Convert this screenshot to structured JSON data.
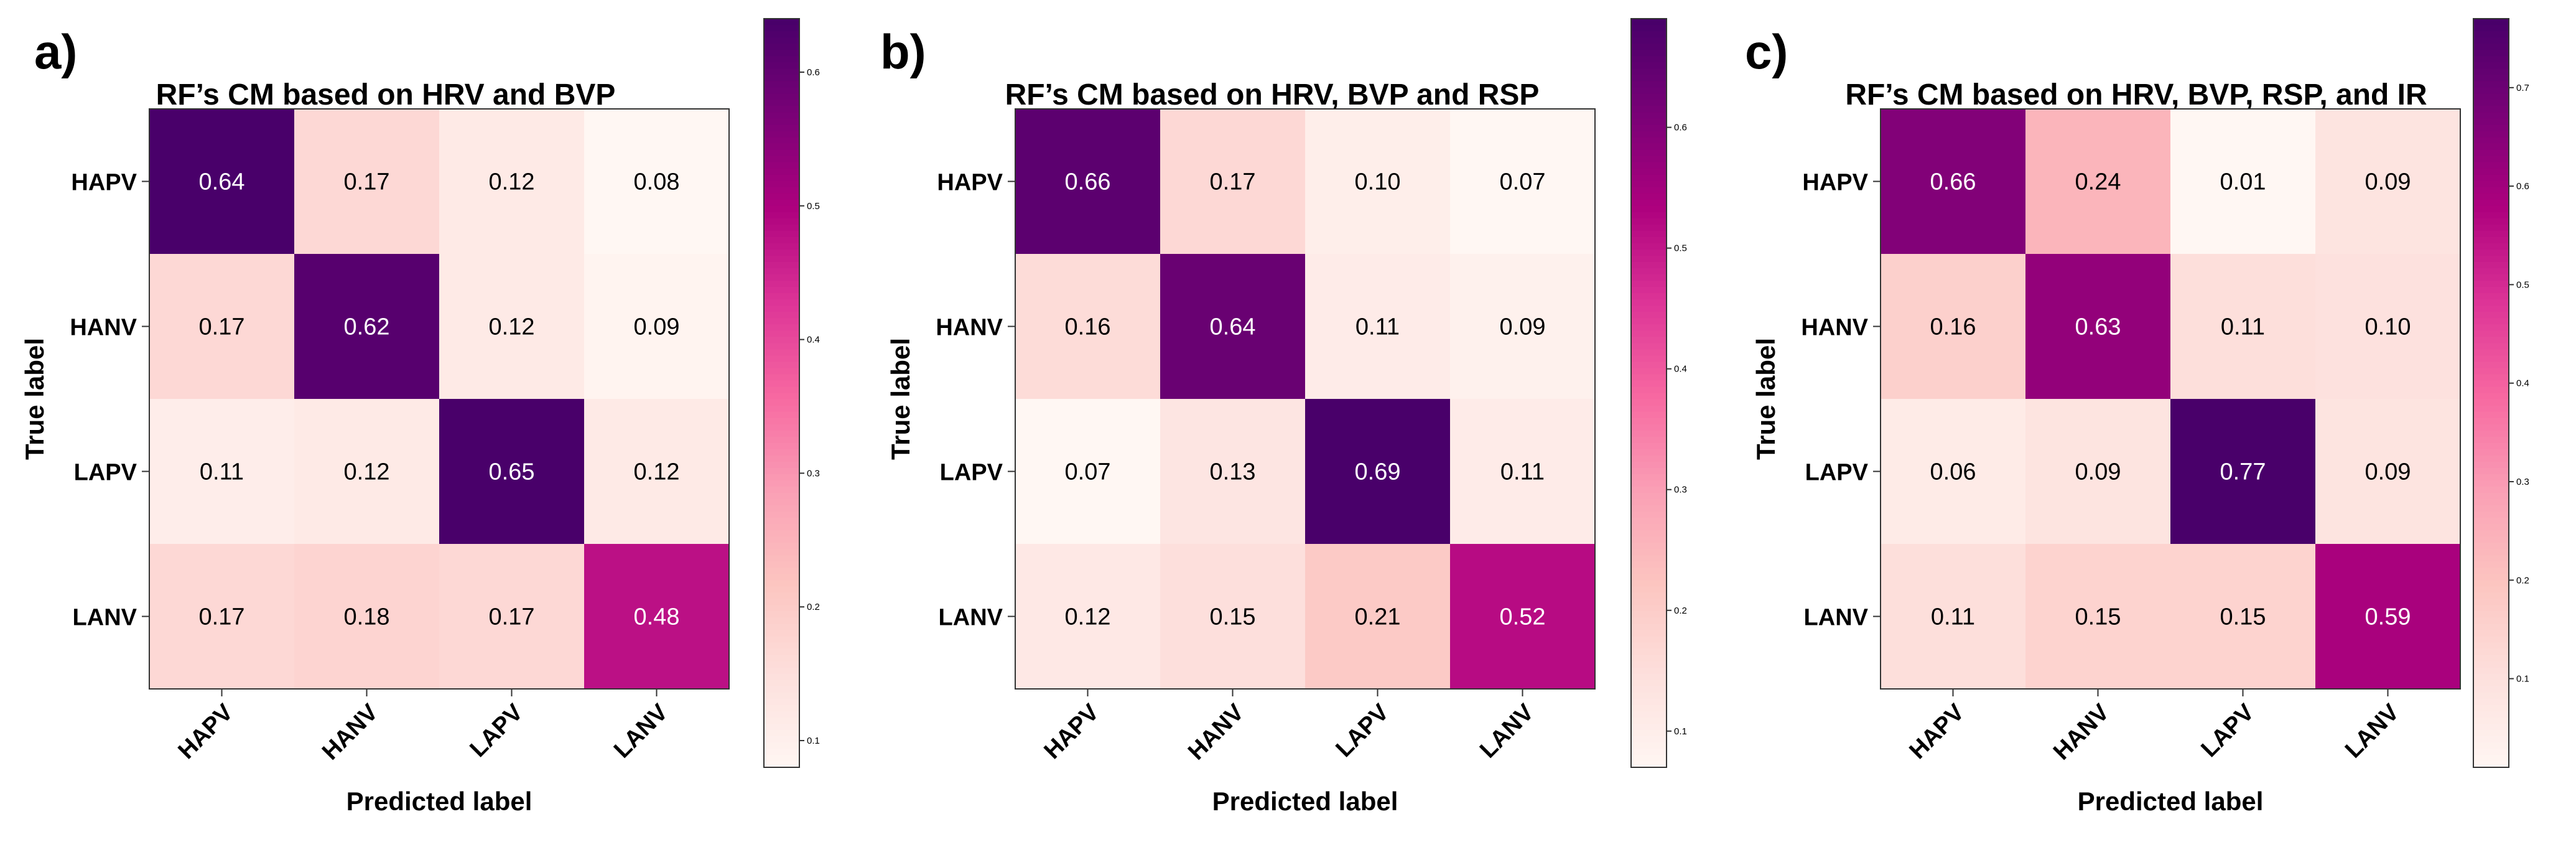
{
  "chart_data": [
    {
      "type": "heatmap",
      "panel": "a)",
      "title": "RF’s CM based on HRV and BVP",
      "xlabel": "Predicted label",
      "ylabel": "True label",
      "x_categories": [
        "HAPV",
        "HANV",
        "LAPV",
        "LANV"
      ],
      "y_categories": [
        "HAPV",
        "HANV",
        "LAPV",
        "LANV"
      ],
      "matrix": [
        [
          0.64,
          0.17,
          0.12,
          0.08
        ],
        [
          0.17,
          0.62,
          0.12,
          0.09
        ],
        [
          0.11,
          0.12,
          0.65,
          0.12
        ],
        [
          0.17,
          0.18,
          0.17,
          0.48
        ]
      ],
      "cell_labels": [
        [
          "0.64",
          "0.17",
          "0.12",
          "0.08"
        ],
        [
          "0.17",
          "0.62",
          "0.12",
          "0.09"
        ],
        [
          "0.11",
          "0.12",
          "0.65",
          "0.12"
        ],
        [
          "0.17",
          "0.18",
          "0.17",
          "0.48"
        ]
      ],
      "colorbar": {
        "min": 0.08,
        "max": 0.64,
        "ticks": [
          0.1,
          0.2,
          0.3,
          0.4,
          0.5,
          0.6
        ],
        "tick_labels": [
          "0.1",
          "0.2",
          "0.3",
          "0.4",
          "0.5",
          "0.6"
        ]
      }
    },
    {
      "type": "heatmap",
      "panel": "b)",
      "title": "RF’s CM based on HRV, BVP and RSP",
      "xlabel": "Predicted label",
      "ylabel": "True label",
      "x_categories": [
        "HAPV",
        "HANV",
        "LAPV",
        "LANV"
      ],
      "y_categories": [
        "HAPV",
        "HANV",
        "LAPV",
        "LANV"
      ],
      "matrix": [
        [
          0.66,
          0.17,
          0.1,
          0.07
        ],
        [
          0.16,
          0.64,
          0.11,
          0.09
        ],
        [
          0.07,
          0.13,
          0.69,
          0.11
        ],
        [
          0.12,
          0.15,
          0.21,
          0.52
        ]
      ],
      "cell_labels": [
        [
          "0.66",
          "0.17",
          "0.10",
          "0.07"
        ],
        [
          "0.16",
          "0.64",
          "0.11",
          "0.09"
        ],
        [
          "0.07",
          "0.13",
          "0.69",
          "0.11"
        ],
        [
          "0.12",
          "0.15",
          "0.21",
          "0.52"
        ]
      ],
      "colorbar": {
        "min": 0.07,
        "max": 0.69,
        "ticks": [
          0.1,
          0.2,
          0.3,
          0.4,
          0.5,
          0.6
        ],
        "tick_labels": [
          "0.1",
          "0.2",
          "0.3",
          "0.4",
          "0.5",
          "0.6"
        ]
      }
    },
    {
      "type": "heatmap",
      "panel": "c)",
      "title": "RF’s CM based on HRV, BVP, RSP, and IR",
      "xlabel": "Predicted label",
      "ylabel": "True label",
      "x_categories": [
        "HAPV",
        "HANV",
        "LAPV",
        "LANV"
      ],
      "y_categories": [
        "HAPV",
        "HANV",
        "LAPV",
        "LANV"
      ],
      "matrix": [
        [
          0.66,
          0.24,
          0.01,
          0.09
        ],
        [
          0.16,
          0.63,
          0.11,
          0.1
        ],
        [
          0.06,
          0.09,
          0.77,
          0.09
        ],
        [
          0.11,
          0.15,
          0.15,
          0.59
        ]
      ],
      "cell_labels": [
        [
          "0.66",
          "0.24",
          "0.01",
          "0.09"
        ],
        [
          "0.16",
          "0.63",
          "0.11",
          "0.10"
        ],
        [
          "0.06",
          "0.09",
          "0.77",
          "0.09"
        ],
        [
          "0.11",
          "0.15",
          "0.15",
          "0.59"
        ]
      ],
      "colorbar": {
        "min": 0.01,
        "max": 0.77,
        "ticks": [
          0.1,
          0.2,
          0.3,
          0.4,
          0.5,
          0.6,
          0.7
        ],
        "tick_labels": [
          "0.1",
          "0.2",
          "0.3",
          "0.4",
          "0.5",
          "0.6",
          "0.7"
        ]
      }
    }
  ],
  "colors": {
    "colormap": [
      "#fff7f3",
      "#fde0dd",
      "#fcc5c0",
      "#fa9fb5",
      "#f768a1",
      "#dd3497",
      "#ae017e",
      "#7a0177",
      "#49006a"
    ],
    "text_dark": "#000000",
    "text_light": "#ffffff"
  }
}
